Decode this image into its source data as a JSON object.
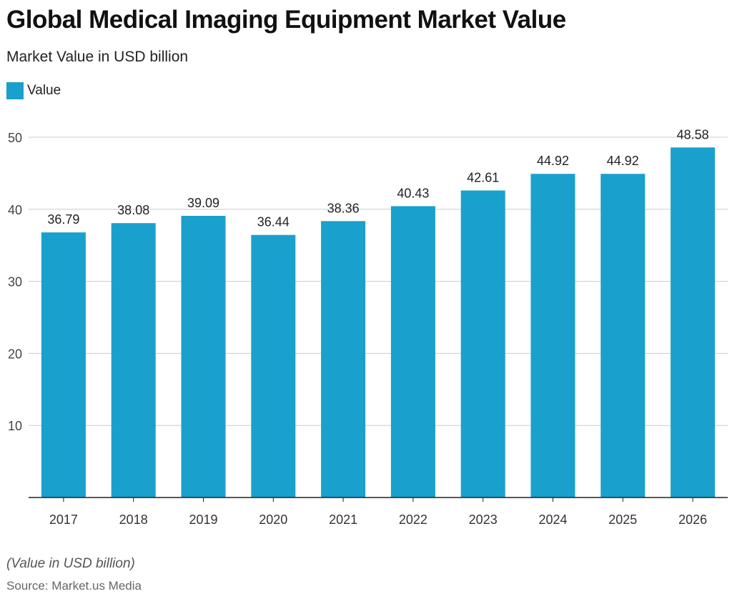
{
  "title": "Global Medical Imaging Equipment Market Value",
  "subtitle": "Market Value in USD billion",
  "note": "(Value in USD billion)",
  "source": "Source: Market.us Media",
  "colors": {
    "bar": "#1aa0cc",
    "grid": "#cccccc",
    "axis": "#222222"
  },
  "chart_data": {
    "type": "bar",
    "categories": [
      "2017",
      "2018",
      "2019",
      "2020",
      "2021",
      "2022",
      "2023",
      "2024",
      "2025",
      "2026"
    ],
    "series": [
      {
        "name": "Value",
        "values": [
          36.79,
          38.08,
          39.09,
          36.44,
          38.36,
          40.43,
          42.61,
          44.92,
          44.92,
          48.58
        ]
      }
    ],
    "data_labels": [
      "36.79",
      "38.08",
      "39.09",
      "36.44",
      "38.36",
      "40.43",
      "42.61",
      "44.92",
      "44.92",
      "48.58"
    ],
    "yticks": [
      10,
      20,
      30,
      40,
      50
    ],
    "ylim": [
      0,
      50
    ],
    "grid": true,
    "legend_position": "top-left"
  }
}
